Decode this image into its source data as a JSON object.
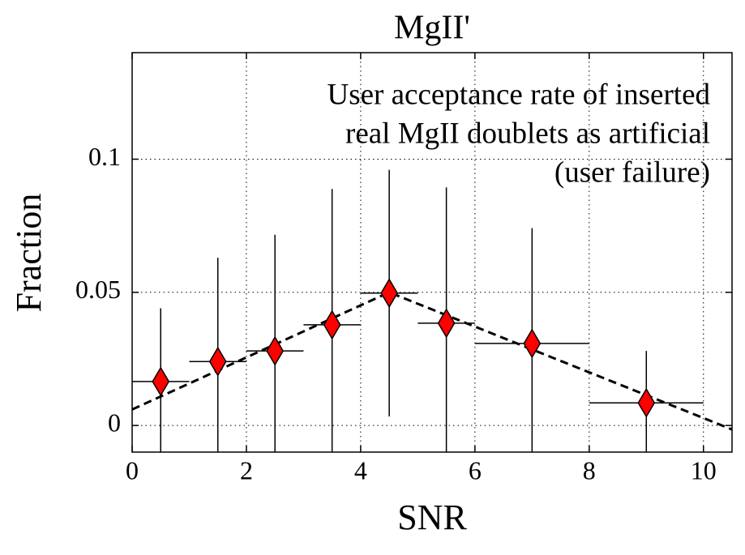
{
  "chart_data": {
    "type": "errorbar",
    "title": "MgII'",
    "annotation": [
      "User acceptance rate of inserted",
      "real MgII doublets as artificial",
      "(user failure)"
    ],
    "xlabel": "SNR",
    "ylabel": "Fraction",
    "x": [
      0.5,
      1.5,
      2.5,
      3.5,
      4.5,
      5.5,
      7,
      9
    ],
    "xerr": [
      0.5,
      0.5,
      0.5,
      0.5,
      0.5,
      0.5,
      1,
      1
    ],
    "values": [
      0.0165,
      0.024,
      0.028,
      0.0378,
      0.0497,
      0.0384,
      0.0308,
      0.0085
    ],
    "yerr": [
      0.0275,
      0.039,
      0.0436,
      0.051,
      0.0463,
      0.051,
      0.0433,
      0.0195
    ],
    "color": "#ff0000",
    "marker": "diamond",
    "fit": {
      "x": [
        0,
        4.5,
        10.5
      ],
      "values": [
        0.006,
        0.05,
        -0.0015
      ],
      "style": "dashed"
    },
    "xlim": [
      0,
      10.5
    ],
    "ylim": [
      -0.01,
      0.14
    ],
    "xticks": [
      0,
      2,
      4,
      6,
      8,
      10
    ],
    "yticks": [
      0,
      0.05,
      0.1
    ],
    "grid": true
  }
}
